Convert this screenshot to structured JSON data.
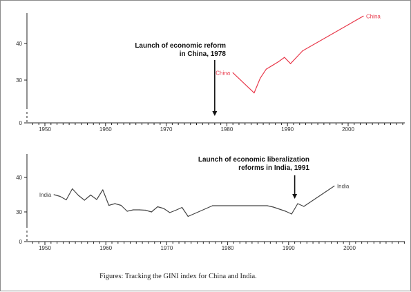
{
  "caption": "Figures: Tracking the GINI index for China and India.",
  "chart_data": [
    {
      "type": "line",
      "x_ticks": [
        "1950",
        "1960",
        "1970",
        "1980",
        "1990",
        "2000"
      ],
      "y_ticks": [
        "0",
        "30",
        "40"
      ],
      "xlim": [
        1946,
        2009
      ],
      "ylim": [
        0,
        50
      ],
      "y_axis_break": true,
      "grid": false,
      "series": [
        {
          "name": "China",
          "color": "#e8394b",
          "label_start": "China",
          "label_end": "China",
          "x": [
            1981,
            1984.5,
            1985.5,
            1986.5,
            1987.5,
            1988.5,
            1989.5,
            1990.5,
            1992.5,
            2002.5
          ],
          "y": [
            32,
            26.5,
            30.5,
            33,
            34,
            35,
            36.2,
            34.5,
            38,
            47.5
          ]
        }
      ],
      "annotation": {
        "lines": [
          "Launch of economic reform",
          "in China, 1978"
        ],
        "arrow_x": 1978,
        "arrow_y_end": 7
      }
    },
    {
      "type": "line",
      "x_ticks": [
        "1950",
        "1960",
        "1970",
        "1980",
        "1990",
        "2000"
      ],
      "y_ticks": [
        "0",
        "30",
        "40"
      ],
      "xlim": [
        1946,
        2009
      ],
      "ylim": [
        0,
        50
      ],
      "y_axis_break": true,
      "grid": false,
      "series": [
        {
          "name": "India",
          "color": "#444444",
          "label_start": "India",
          "label_end": "India",
          "x": [
            1951.5,
            1952.5,
            1953.5,
            1954.5,
            1955.5,
            1956.5,
            1957.5,
            1958.5,
            1959.5,
            1960.5,
            1961.5,
            1962.5,
            1963.5,
            1964.5,
            1965.5,
            1966.5,
            1967.5,
            1968.5,
            1969.5,
            1970.5,
            1971.5,
            1972.5,
            1973.5,
            1977.5,
            1986.5,
            1987.5,
            1989.5,
            1990.5,
            1991.5,
            1992.5,
            1997.5
          ],
          "y": [
            35,
            34.5,
            33.5,
            36.7,
            34.8,
            33.4,
            34.9,
            33.6,
            36.4,
            31.9,
            32.4,
            31.9,
            30.2,
            30.6,
            30.6,
            30.5,
            30,
            31.5,
            31,
            29.8,
            30.5,
            31.3,
            28.7,
            31.8,
            31.8,
            31.4,
            30.2,
            29.4,
            32.4,
            31.6,
            37.5
          ]
        }
      ],
      "annotation": {
        "lines": [
          "Launch of economic liberalization",
          "reforms in India, 1991"
        ],
        "arrow_x": 1991,
        "arrow_y_end": 33
      }
    }
  ]
}
